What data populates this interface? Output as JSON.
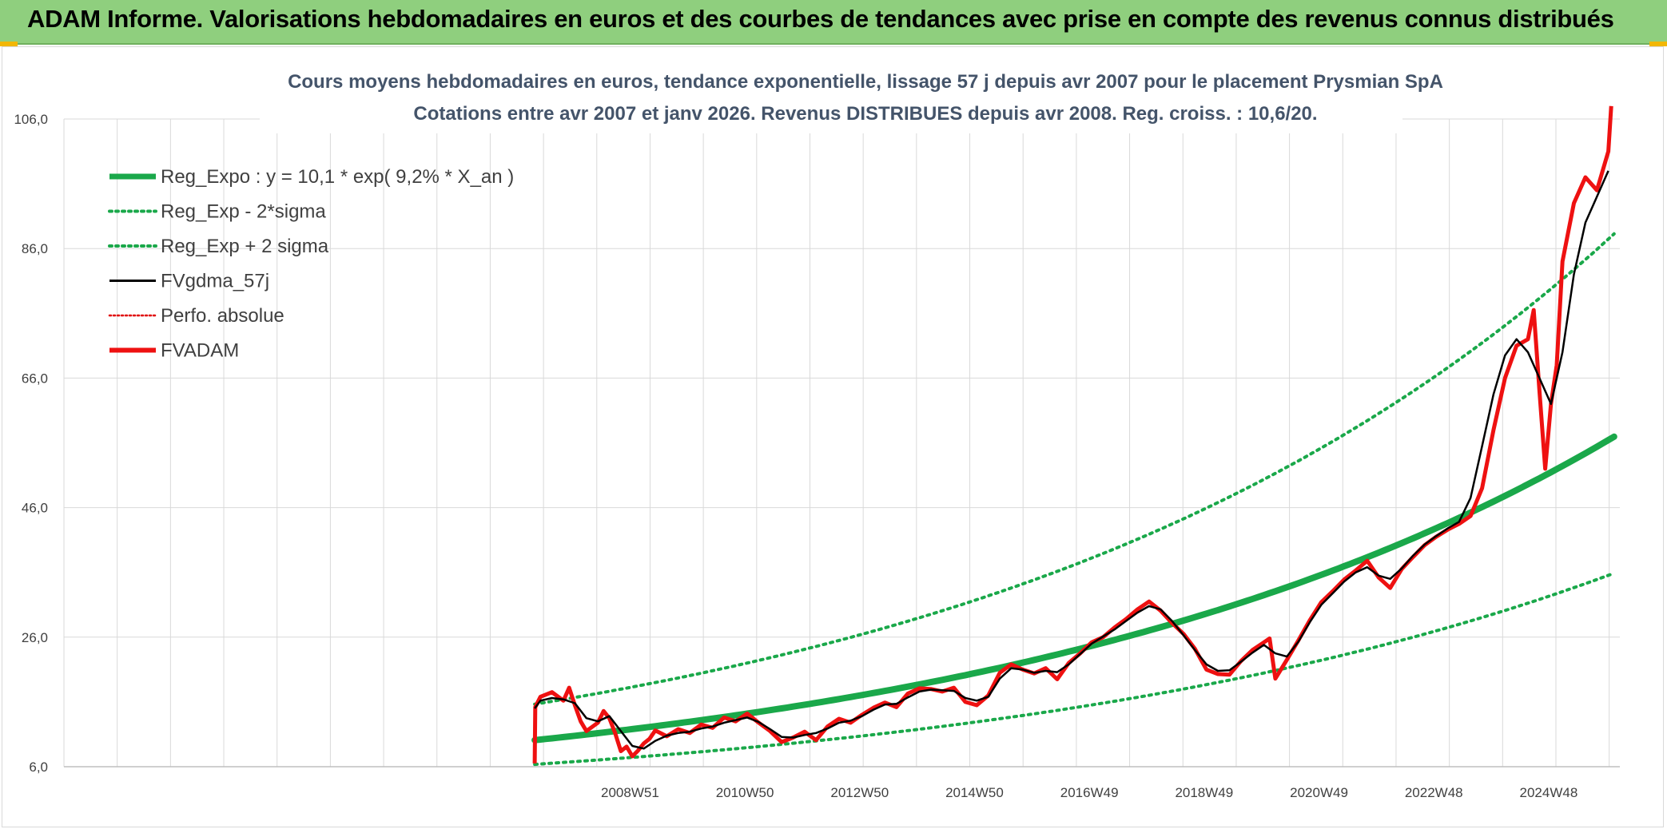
{
  "banner": {
    "title": "ADAM Informe. Valorisations hebdomadaires en euros et des courbes de tendances avec prise en compte des revenus connus distribués"
  },
  "chart_data": {
    "type": "line",
    "title": "Cours moyens hebdomadaires en euros, tendance exponentielle, lissage 57 j depuis avr 2007 pour le placement Prysmian SpA",
    "subtitle": "Cotations entre avr 2007 et janv 2026. Revenus DISTRIBUES depuis avr 2008. Reg. croiss. : 10,6/20.",
    "y_ticks": [
      "6,0",
      "26,0",
      "46,0",
      "66,0",
      "86,0",
      "106,0"
    ],
    "ylim": [
      6,
      106
    ],
    "x_ticks": [
      "2008W51",
      "2010W50",
      "2012W50",
      "2014W50",
      "2016W49",
      "2018W49",
      "2020W49",
      "2022W48",
      "2024W48"
    ],
    "x_tick_years": [
      2008.96,
      2010.96,
      2012.96,
      2014.96,
      2016.96,
      2018.96,
      2020.96,
      2022.96,
      2024.96
    ],
    "xlim": [
      1999.1,
      2026.2
    ],
    "grid": true,
    "legend_position": "top-left",
    "colors": {
      "reg_expo": "#1aa84a",
      "reg_band": "#1aa84a",
      "gdma": "#000000",
      "perfo": "#e00000",
      "fvadam": "#ee1111"
    },
    "legend": [
      {
        "name": "Reg_Expo : y = 10,1 * exp( 9,2% *  X_an )",
        "style": "thick-green"
      },
      {
        "name": "Reg_Exp - 2*sigma",
        "style": "dotted-green"
      },
      {
        "name": "Reg_Exp + 2 sigma",
        "style": "dotted-green"
      },
      {
        "name": "FVgdma_57j",
        "style": "solid-black"
      },
      {
        "name": "Perfo. absolue",
        "style": "dotted-red"
      },
      {
        "name": "FVADAM",
        "style": "thick-red"
      }
    ],
    "regression": {
      "a": 10.1,
      "rate": 0.092,
      "start_year": 2007.3,
      "end_year": 2026.1,
      "lower_factor": 0.63,
      "upper_factor": 1.55
    },
    "series": [
      {
        "name": "FVADAM",
        "x": [
          2007.3,
          2007.31,
          2007.4,
          2007.6,
          2007.8,
          2007.9,
          2008.0,
          2008.1,
          2008.2,
          2008.4,
          2008.5,
          2008.6,
          2008.7,
          2008.8,
          2008.9,
          2009.0,
          2009.1,
          2009.2,
          2009.3,
          2009.4,
          2009.6,
          2009.8,
          2010.0,
          2010.2,
          2010.4,
          2010.6,
          2010.8,
          2011.0,
          2011.2,
          2011.4,
          2011.6,
          2011.8,
          2012.0,
          2012.2,
          2012.4,
          2012.6,
          2012.8,
          2013.0,
          2013.2,
          2013.4,
          2013.6,
          2013.8,
          2014.0,
          2014.2,
          2014.4,
          2014.6,
          2014.8,
          2015.0,
          2015.2,
          2015.4,
          2015.6,
          2015.8,
          2016.0,
          2016.2,
          2016.4,
          2016.6,
          2016.8,
          2017.0,
          2017.2,
          2017.4,
          2017.6,
          2017.8,
          2018.0,
          2018.2,
          2018.4,
          2018.6,
          2018.8,
          2019.0,
          2019.2,
          2019.4,
          2019.6,
          2019.8,
          2020.0,
          2020.1,
          2020.2,
          2020.4,
          2020.6,
          2020.8,
          2021.0,
          2021.2,
          2021.4,
          2021.6,
          2021.8,
          2022.0,
          2022.2,
          2022.4,
          2022.6,
          2022.8,
          2023.0,
          2023.2,
          2023.4,
          2023.6,
          2023.8,
          2024.0,
          2024.2,
          2024.4,
          2024.6,
          2024.7,
          2024.8,
          2024.9,
          2025.0,
          2025.1,
          2025.2,
          2025.4,
          2025.6,
          2025.8,
          2026.0,
          2026.05
        ],
        "y": [
          6.5,
          15.2,
          16.8,
          17.5,
          16.2,
          18.2,
          15.5,
          13.0,
          11.5,
          12.8,
          14.6,
          13.5,
          11.2,
          8.4,
          9.1,
          7.6,
          8.5,
          9.6,
          10.3,
          11.6,
          10.7,
          11.8,
          11.2,
          12.5,
          12.0,
          13.6,
          13.0,
          14.2,
          12.8,
          11.5,
          9.8,
          10.5,
          11.4,
          10.1,
          12.2,
          13.4,
          12.8,
          14.0,
          15.1,
          15.9,
          15.2,
          17.3,
          18.1,
          18.0,
          17.6,
          18.2,
          16.0,
          15.5,
          17.0,
          20.5,
          21.8,
          21.0,
          20.4,
          21.2,
          19.5,
          22.0,
          23.5,
          25.2,
          26.0,
          27.5,
          28.8,
          30.3,
          31.5,
          30.1,
          28.2,
          26.5,
          24.2,
          21.0,
          20.3,
          20.2,
          22.3,
          24.0,
          25.2,
          25.8,
          19.6,
          22.5,
          25.5,
          28.6,
          31.4,
          33.1,
          34.9,
          36.3,
          37.8,
          35.2,
          33.6,
          36.5,
          38.4,
          40.2,
          41.5,
          42.6,
          43.5,
          44.7,
          49.0,
          58.0,
          66.0,
          71.0,
          72.0,
          76.5,
          64.0,
          52.0,
          62.0,
          68.0,
          84.0,
          93.0,
          97.0,
          95.0,
          101.0,
          108.0
        ]
      },
      {
        "name": "FVgdma_57j",
        "x": [
          2007.3,
          2007.4,
          2007.6,
          2007.8,
          2008.0,
          2008.2,
          2008.4,
          2008.6,
          2008.8,
          2009.0,
          2009.2,
          2009.4,
          2009.6,
          2009.8,
          2010.0,
          2010.2,
          2010.4,
          2010.6,
          2010.8,
          2011.0,
          2011.2,
          2011.4,
          2011.6,
          2011.8,
          2012.0,
          2012.2,
          2012.4,
          2012.6,
          2012.8,
          2013.0,
          2013.2,
          2013.4,
          2013.6,
          2013.8,
          2014.0,
          2014.2,
          2014.4,
          2014.6,
          2014.8,
          2015.0,
          2015.2,
          2015.4,
          2015.6,
          2015.8,
          2016.0,
          2016.2,
          2016.4,
          2016.6,
          2016.8,
          2017.0,
          2017.2,
          2017.4,
          2017.6,
          2017.8,
          2018.0,
          2018.2,
          2018.4,
          2018.6,
          2018.8,
          2019.0,
          2019.2,
          2019.4,
          2019.6,
          2019.8,
          2020.0,
          2020.2,
          2020.4,
          2020.6,
          2020.8,
          2021.0,
          2021.2,
          2021.4,
          2021.6,
          2021.8,
          2022.0,
          2022.2,
          2022.4,
          2022.6,
          2022.8,
          2023.0,
          2023.2,
          2023.4,
          2023.6,
          2023.8,
          2024.0,
          2024.2,
          2024.4,
          2024.6,
          2024.8,
          2025.0,
          2025.2,
          2025.4,
          2025.6,
          2025.8,
          2026.0
        ],
        "y": [
          15.0,
          16.2,
          16.6,
          16.4,
          15.8,
          13.5,
          13.0,
          13.8,
          11.5,
          9.2,
          8.8,
          10.0,
          10.8,
          11.2,
          11.4,
          11.9,
          12.2,
          12.8,
          13.2,
          13.6,
          12.9,
          11.8,
          10.6,
          10.5,
          10.9,
          11.2,
          11.9,
          12.8,
          13.1,
          13.8,
          14.8,
          15.6,
          15.7,
          16.7,
          17.6,
          17.9,
          17.8,
          17.7,
          16.6,
          16.2,
          16.8,
          19.6,
          21.2,
          21.0,
          20.5,
          20.8,
          20.6,
          21.8,
          23.4,
          25.0,
          26.1,
          27.2,
          28.5,
          29.8,
          30.8,
          30.3,
          28.5,
          26.3,
          24.0,
          21.8,
          20.8,
          20.9,
          22.2,
          23.6,
          24.8,
          23.5,
          23.0,
          25.3,
          28.3,
          31.0,
          32.8,
          34.6,
          36.0,
          36.8,
          35.5,
          35.0,
          36.6,
          38.6,
          40.3,
          41.6,
          42.8,
          43.8,
          47.5,
          55.5,
          63.5,
          69.5,
          72.0,
          70.0,
          66.0,
          62.0,
          70.0,
          82.0,
          90.0,
          94.0,
          98.0
        ]
      }
    ]
  }
}
